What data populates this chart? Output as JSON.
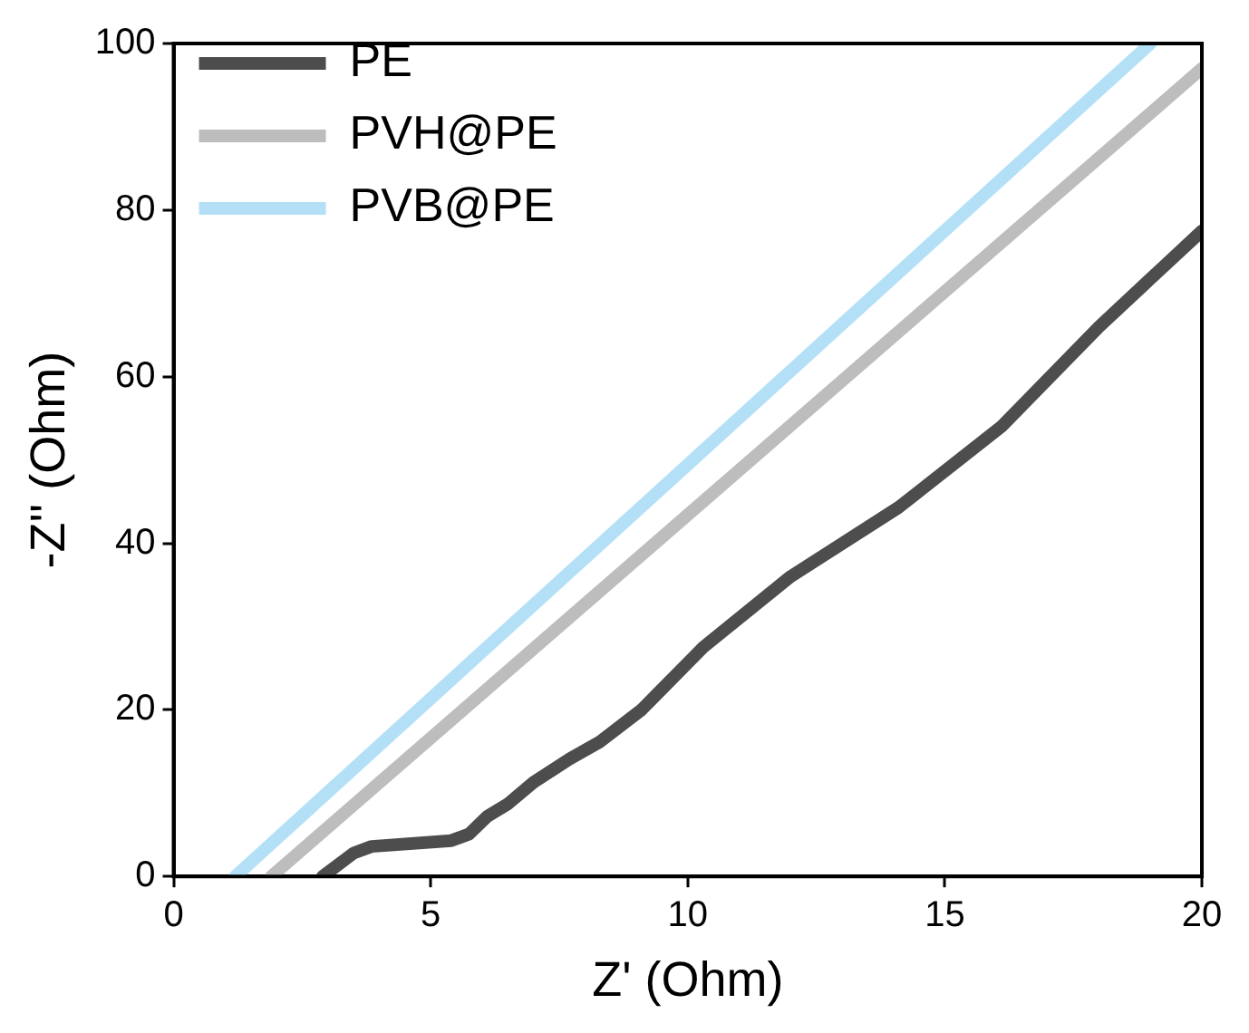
{
  "chart_data": {
    "type": "line",
    "xlabel": "Z' (Ohm)",
    "ylabel": "-Z'' (Ohm)",
    "xlim": [
      0,
      20
    ],
    "xticks": [
      0,
      5,
      10,
      15,
      20
    ],
    "ylim": [
      0,
      100
    ],
    "yticks": [
      0,
      20,
      40,
      60,
      80,
      100
    ],
    "grid": false,
    "legend": "top left",
    "marker": "none",
    "line_style": "solid",
    "series": [
      {
        "name": "PE",
        "color": "#4d4d4d",
        "x": [
          2.9,
          3.5,
          3.85,
          5.4,
          5.75,
          6.1,
          6.5,
          7.0,
          7.7,
          8.3,
          9.1,
          10.3,
          12,
          14.1,
          16.1,
          18,
          20
        ],
        "values": [
          0,
          2.8,
          3.6,
          4.3,
          5.1,
          7.2,
          8.7,
          11.3,
          14.1,
          16.2,
          20,
          27.5,
          36,
          44.3,
          54,
          66,
          77.5
        ]
      },
      {
        "name": "PVH@PE",
        "color": "#bdbdbd",
        "x": [
          1.9,
          20
        ],
        "values": [
          0,
          97
        ]
      },
      {
        "name": "PVB@PE",
        "color": "#b3e0f7",
        "x": [
          1.2,
          19.0
        ],
        "values": [
          0,
          100
        ]
      }
    ]
  }
}
